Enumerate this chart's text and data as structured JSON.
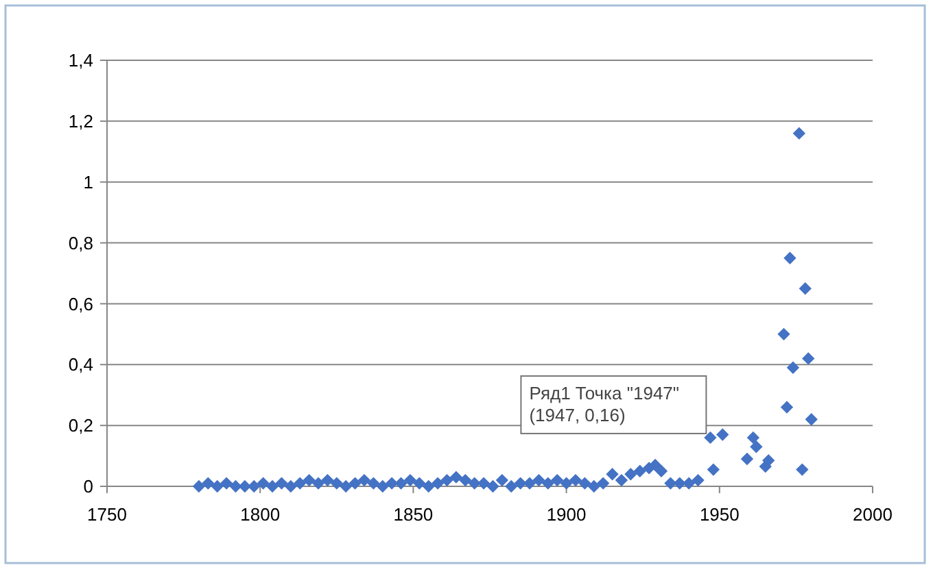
{
  "chart_data": {
    "type": "scatter",
    "marker": "diamond",
    "grid": "y",
    "xlim": [
      1750,
      2000
    ],
    "xticks": [
      1750,
      1800,
      1850,
      1900,
      1950,
      2000
    ],
    "ylim": [
      0,
      1.4
    ],
    "yticks": [
      0,
      {
        "value": 0.2,
        "label": "0,2"
      },
      {
        "value": 0.4,
        "label": "0,4"
      },
      {
        "value": 0.6,
        "label": "0,6"
      },
      {
        "value": 0.8,
        "label": "0,8"
      },
      1,
      {
        "value": 1.2,
        "label": "1,2"
      },
      {
        "value": 1.4,
        "label": "1,4"
      }
    ],
    "annotations": [
      {
        "text": "Ряд1 Точка \"1947\"\n(1947, 0,16)",
        "x": 1947,
        "y": 0.16
      }
    ],
    "series": [
      {
        "color": "#4472c4",
        "x": [
          1780,
          1783,
          1786,
          1789,
          1792,
          1795,
          1798,
          1801,
          1804,
          1807,
          1810,
          1813,
          1816,
          1819,
          1822,
          1825,
          1828,
          1831,
          1834,
          1837,
          1840,
          1843,
          1846,
          1849,
          1852,
          1855,
          1858,
          1861,
          1864,
          1867,
          1870,
          1873,
          1876,
          1879,
          1882,
          1885,
          1888,
          1891,
          1894,
          1897,
          1900,
          1903,
          1906,
          1909,
          1912,
          1915,
          1918,
          1921,
          1924,
          1927,
          1929,
          1931,
          1934,
          1937,
          1940,
          1943,
          1947,
          1948,
          1951,
          1959,
          1961,
          1962,
          1965,
          1966,
          1971,
          1972,
          1973,
          1974,
          1976,
          1977,
          1978,
          1979,
          1980
        ],
        "values": [
          0,
          0.01,
          0,
          0.01,
          0,
          0,
          0,
          0.01,
          0,
          0.01,
          0,
          0.01,
          0.02,
          0.01,
          0.02,
          0.01,
          0,
          0.01,
          0.02,
          0.01,
          0,
          0.01,
          0.01,
          0.02,
          0.01,
          0,
          0.01,
          0.02,
          0.03,
          0.02,
          0.01,
          0.01,
          0,
          0.02,
          0,
          0.01,
          0.01,
          0.02,
          0.01,
          0.02,
          0.01,
          0.02,
          0.01,
          0,
          0.01,
          0.04,
          0.02,
          0.04,
          0.05,
          0.06,
          0.07,
          0.05,
          0.01,
          0.01,
          0.01,
          0.02,
          0.16,
          0.055,
          0.17,
          0.09,
          0.16,
          0.13,
          0.065,
          0.085,
          0.5,
          0.26,
          0.75,
          0.39,
          1.16,
          0.055,
          0.65,
          0.42,
          0.22
        ]
      }
    ]
  }
}
